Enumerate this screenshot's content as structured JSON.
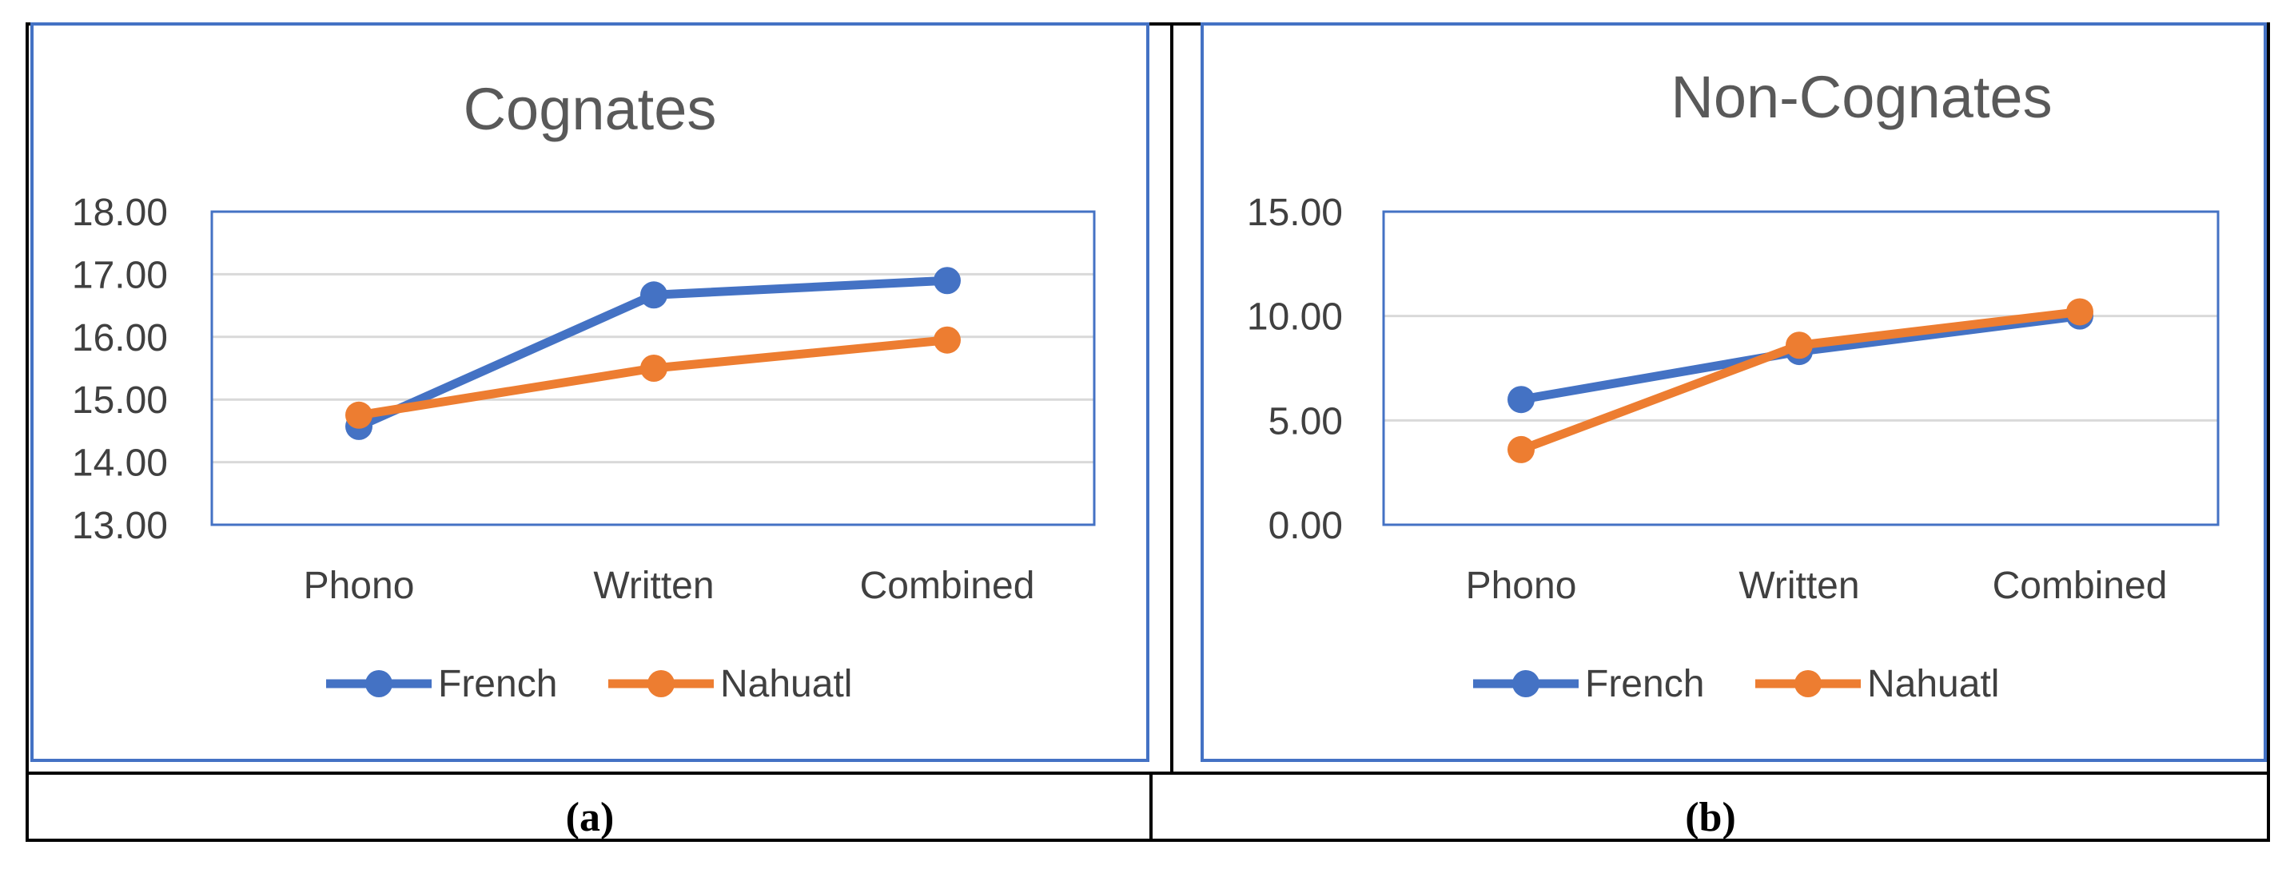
{
  "chart_data": [
    {
      "type": "line",
      "title": "Cognates",
      "categories": [
        "Phono",
        "Written",
        "Combined"
      ],
      "series": [
        {
          "name": "French",
          "color": "#4472C4",
          "values": [
            14.57,
            16.67,
            16.9
          ]
        },
        {
          "name": "Nahuatl",
          "color": "#ED7D31",
          "values": [
            14.75,
            15.5,
            15.95
          ]
        }
      ],
      "ylim": [
        13.0,
        18.0
      ],
      "yticks": [
        "13.00",
        "14.00",
        "15.00",
        "16.00",
        "17.00",
        "18.00"
      ],
      "grid": true,
      "legend": "bottom",
      "caption": "(a)"
    },
    {
      "type": "line",
      "title": "Non-Cognates",
      "categories": [
        "Phono",
        "Written",
        "Combined"
      ],
      "series": [
        {
          "name": "French",
          "color": "#4472C4",
          "values": [
            6.0,
            8.3,
            10.0
          ]
        },
        {
          "name": "Nahuatl",
          "color": "#ED7D31",
          "values": [
            3.6,
            8.6,
            10.2
          ]
        }
      ],
      "ylim": [
        0.0,
        15.0
      ],
      "yticks": [
        "0.00",
        "5.00",
        "10.00",
        "15.00"
      ],
      "grid": true,
      "legend": "bottom",
      "caption": "(b)"
    }
  ]
}
